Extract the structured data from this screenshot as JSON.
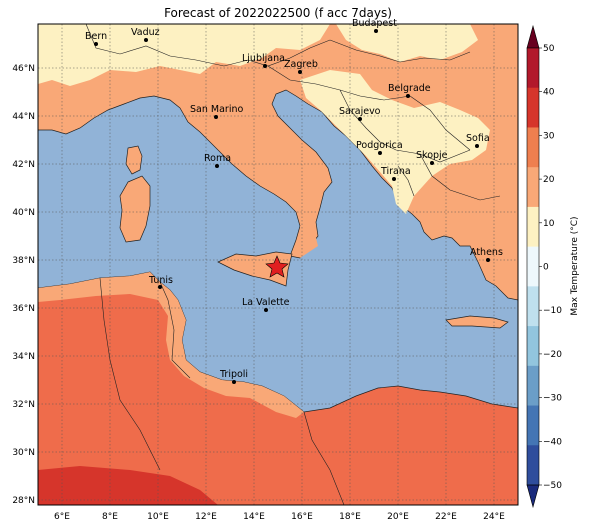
{
  "title": "Forecast of 2022022500 (f acc 7days)",
  "colorbar": {
    "label": "Max Temperature (°C)",
    "ticks": [
      "50",
      "40",
      "30",
      "20",
      "10",
      "0",
      "−10",
      "−20",
      "−30",
      "−40",
      "−50"
    ],
    "colors": [
      "#67001f",
      "#b2182b",
      "#d6352b",
      "#ef7f4f",
      "#f9a877",
      "#fdf1c2",
      "#eef8fc",
      "#bfe0ee",
      "#92c5de",
      "#6b9ec8",
      "#4475b4",
      "#2f4d9c",
      "#1a2a7c"
    ]
  },
  "axes": {
    "lon_ticks": [
      "6°E",
      "8°E",
      "10°E",
      "12°E",
      "14°E",
      "16°E",
      "18°E",
      "20°E",
      "22°E",
      "24°E"
    ],
    "lat_ticks": [
      "46°N",
      "44°N",
      "42°N",
      "40°N",
      "38°N",
      "36°N",
      "34°N",
      "32°N",
      "30°N",
      "28°N"
    ]
  },
  "colors": {
    "sea": "#91b3d7",
    "land_warm": "#f9a877",
    "land_mild": "#fdf1c2",
    "land_hot": "#ef6c4b",
    "land_hotter": "#d6352b"
  },
  "cities": [
    {
      "name": "Bern"
    },
    {
      "name": "Vaduz"
    },
    {
      "name": "Ljubljana"
    },
    {
      "name": "Zagreb"
    },
    {
      "name": "Budapest"
    },
    {
      "name": "Belgrade"
    },
    {
      "name": "San Marino"
    },
    {
      "name": "Sarajevo"
    },
    {
      "name": "Sofia"
    },
    {
      "name": "Roma"
    },
    {
      "name": "Podgorica"
    },
    {
      "name": "Skopje"
    },
    {
      "name": "Tirana"
    },
    {
      "name": "Athens"
    },
    {
      "name": "Tunis"
    },
    {
      "name": "La Valette"
    },
    {
      "name": "Tripoli"
    }
  ],
  "marker": {
    "icon": "red-star-icon"
  }
}
